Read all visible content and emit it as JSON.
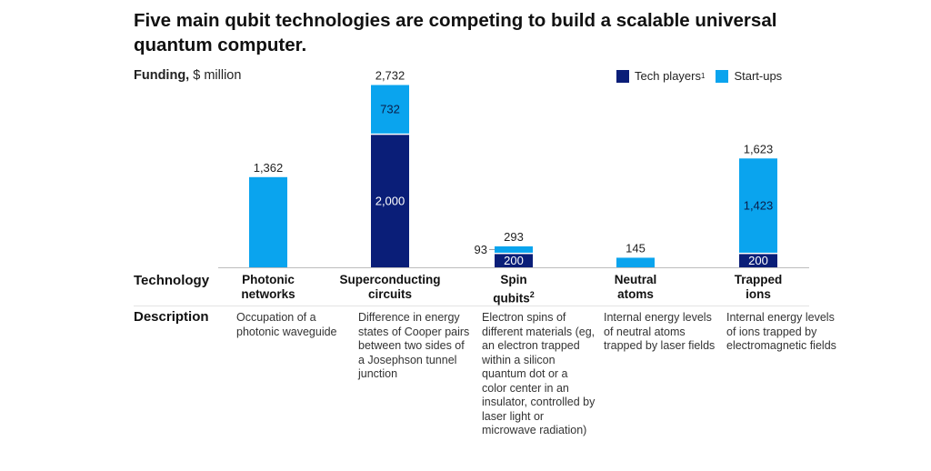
{
  "title": "Five main qubit technologies are competing to build a scalable universal quantum computer.",
  "funding_label_bold": "Funding,",
  "funding_label_rest": " $ million",
  "legend": [
    {
      "name": "Tech players",
      "sup": "1",
      "color": "#0a1e78"
    },
    {
      "name": "Start-ups",
      "sup": "",
      "color": "#0aa4ee"
    }
  ],
  "row_labels": {
    "technology": "Technology",
    "description": "Description"
  },
  "technologies": [
    {
      "name": "Photonic networks",
      "sup": "",
      "description": "Occupation of a photonic waveguide"
    },
    {
      "name": "Superconducting circuits",
      "sup": "",
      "description": "Difference in energy states of Cooper pairs between two sides of a Josephson tunnel junction"
    },
    {
      "name": "Spin qubits",
      "sup": "2",
      "description": "Electron spins of different materials (eg, an electron trapped within a silicon quantum dot or a color center in an insulator, controlled by laser light or microwave radiation)"
    },
    {
      "name": "Neutral atoms",
      "sup": "",
      "description": "Internal energy levels of neutral atoms trapped by laser fields"
    },
    {
      "name": "Trapped ions",
      "sup": "",
      "description": "Internal energy levels of ions trapped by electromagnetic fields"
    }
  ],
  "chart_data": {
    "type": "bar",
    "stacked": true,
    "title": "Five main qubit technologies are competing to build a scalable universal quantum computer.",
    "ylabel": "Funding, $ million",
    "xlabel": "Technology",
    "categories": [
      "Photonic networks",
      "Superconducting circuits",
      "Spin qubits",
      "Neutral atoms",
      "Trapped ions"
    ],
    "series": [
      {
        "name": "Tech players",
        "color": "#0a1e78",
        "values": [
          0,
          2000,
          200,
          0,
          200
        ]
      },
      {
        "name": "Start-ups",
        "color": "#0aa4ee",
        "values": [
          1362,
          732,
          93,
          145,
          1423
        ]
      }
    ],
    "totals": [
      1362,
      2732,
      293,
      145,
      1623
    ],
    "segment_labels": [
      {
        "tech": null,
        "start": null
      },
      {
        "tech": "2,000",
        "start": "732"
      },
      {
        "tech": "200",
        "start": "93"
      },
      {
        "tech": null,
        "start": null
      },
      {
        "tech": "200",
        "start": "1,423"
      }
    ],
    "total_labels": [
      "1,362",
      "2,732",
      "293",
      "145",
      "1,623"
    ],
    "ylim": [
      0,
      2732
    ],
    "grid": false,
    "legend_position": "top-right"
  }
}
